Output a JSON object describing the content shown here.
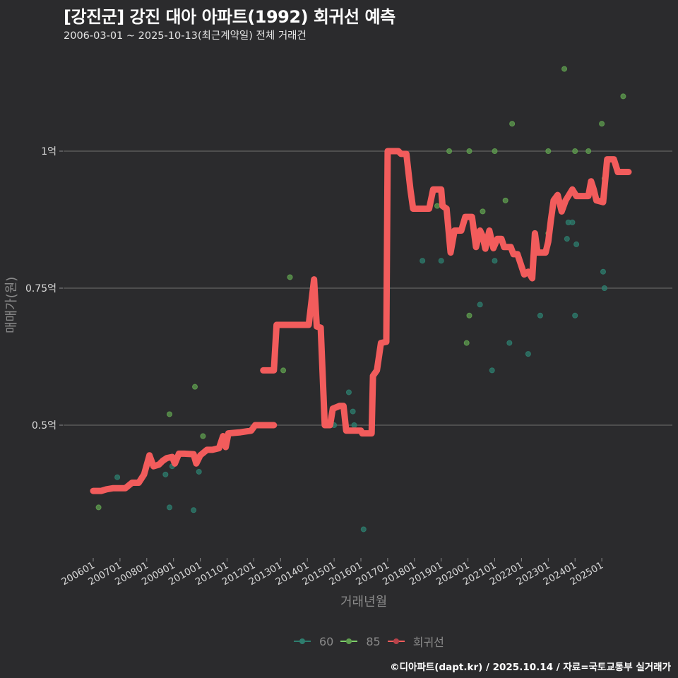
{
  "header": {
    "title": "[강진군] 강진 대아 아파트(1992) 회귀선 예측",
    "subtitle": "2006-03-01 ~ 2025-10-13(최근계약일) 전체 거래건"
  },
  "footer": {
    "credit": "©디아파트(dapt.kr) / 2025.10.14 / 자료=국토교통부 실거래가"
  },
  "colors": {
    "background": "#2b2b2d",
    "grid": "#707070",
    "series_60": "#2e7d6e",
    "series_85": "#5f9e4f",
    "regression": "#f25c5c"
  },
  "chart_data": {
    "type": "scatter",
    "title": "[강진군] 강진 대아 아파트(1992) 회귀선 예측",
    "subtitle": "2006-03-01 ~ 2025-10-13(최근계약일) 전체 거래건",
    "xlabel": "거래년월",
    "ylabel": "매매가(원)",
    "x_ticks": [
      "200601",
      "200701",
      "200801",
      "200901",
      "201001",
      "201101",
      "201201",
      "201301",
      "201401",
      "201501",
      "201601",
      "201701",
      "201801",
      "201901",
      "202001",
      "202101",
      "202201",
      "202301",
      "202401",
      "202501"
    ],
    "y_ticks": [
      {
        "value": 0.5,
        "label": "0.5억"
      },
      {
        "value": 0.75,
        "label": "0.75억"
      },
      {
        "value": 1.0,
        "label": "1억"
      }
    ],
    "ylim": [
      0.25,
      1.27
    ],
    "grid": true,
    "legend": {
      "position": "bottom",
      "entries": [
        {
          "label": "60",
          "color": "#2e7d6e"
        },
        {
          "label": "85",
          "color": "#5f9e4f"
        },
        {
          "label": "회귀선",
          "color": "#f25c5c"
        }
      ]
    },
    "series": [
      {
        "name": "60",
        "kind": "points",
        "points": [
          [
            2006.9,
            0.405
          ],
          [
            2008.7,
            0.41
          ],
          [
            2008.85,
            0.35
          ],
          [
            2008.95,
            0.425
          ],
          [
            2009.75,
            0.345
          ],
          [
            2009.95,
            0.415
          ],
          [
            2015.0,
            0.5
          ],
          [
            2015.55,
            0.56
          ],
          [
            2015.7,
            0.525
          ],
          [
            2015.75,
            0.5
          ],
          [
            2016.1,
            0.31
          ],
          [
            2018.3,
            0.8
          ],
          [
            2019.0,
            0.8
          ],
          [
            2020.45,
            0.72
          ],
          [
            2020.9,
            0.6
          ],
          [
            2021.0,
            0.8
          ],
          [
            2021.55,
            0.65
          ],
          [
            2022.25,
            0.63
          ],
          [
            2022.7,
            0.7
          ],
          [
            2023.7,
            0.84
          ],
          [
            2023.75,
            0.87
          ],
          [
            2023.9,
            0.87
          ],
          [
            2024.05,
            0.83
          ],
          [
            2024.0,
            0.7
          ],
          [
            2025.05,
            0.78
          ],
          [
            2025.1,
            0.75
          ]
        ]
      },
      {
        "name": "85",
        "kind": "points",
        "points": [
          [
            2006.2,
            0.35
          ],
          [
            2008.85,
            0.52
          ],
          [
            2009.8,
            0.57
          ],
          [
            2010.1,
            0.48
          ],
          [
            2013.1,
            0.6
          ],
          [
            2013.35,
            0.77
          ],
          [
            2018.85,
            0.9
          ],
          [
            2019.3,
            1.0
          ],
          [
            2019.95,
            0.65
          ],
          [
            2020.05,
            0.7
          ],
          [
            2020.05,
            1.0
          ],
          [
            2020.55,
            0.89
          ],
          [
            2021.0,
            1.0
          ],
          [
            2021.4,
            0.91
          ],
          [
            2021.65,
            1.05
          ],
          [
            2023.0,
            1.0
          ],
          [
            2023.0,
            0.85
          ],
          [
            2023.6,
            1.15
          ],
          [
            2024.0,
            1.0
          ],
          [
            2024.5,
            1.0
          ],
          [
            2025.0,
            1.05
          ],
          [
            2025.1,
            0.95
          ],
          [
            2025.8,
            1.1
          ]
        ]
      },
      {
        "name": "회귀선",
        "kind": "line",
        "points": [
          [
            2006.0,
            0.38
          ],
          [
            2006.3,
            0.38
          ],
          [
            2006.5,
            0.383
          ],
          [
            2006.75,
            0.385
          ],
          [
            2007.2,
            0.385
          ],
          [
            2007.45,
            0.395
          ],
          [
            2007.7,
            0.395
          ],
          [
            2007.9,
            0.41
          ],
          [
            2008.1,
            0.445
          ],
          [
            2008.25,
            0.425
          ],
          [
            2008.45,
            0.428
          ],
          [
            2008.6,
            0.435
          ],
          [
            2008.75,
            0.44
          ],
          [
            2008.95,
            0.442
          ],
          [
            2009.05,
            0.43
          ],
          [
            2009.2,
            0.448
          ],
          [
            2009.4,
            0.448
          ],
          [
            2009.75,
            0.447
          ],
          [
            2009.85,
            0.43
          ],
          [
            2010.0,
            0.445
          ],
          [
            2010.25,
            0.455
          ],
          [
            2010.45,
            0.455
          ],
          [
            2010.7,
            0.458
          ],
          [
            2010.85,
            0.48
          ],
          [
            2010.95,
            0.46
          ],
          [
            2011.05,
            0.485
          ],
          [
            2011.5,
            0.487
          ],
          [
            2011.9,
            0.49
          ],
          [
            2012.05,
            0.5
          ],
          [
            2012.4,
            0.5
          ],
          [
            2012.75,
            0.5
          ]
        ],
        "points_segment2": [
          [
            2012.35,
            0.6
          ],
          [
            2012.75,
            0.6
          ],
          [
            2012.85,
            0.683
          ],
          [
            2013.0,
            0.683
          ],
          [
            2014.05,
            0.683
          ],
          [
            2014.25,
            0.766
          ],
          [
            2014.35,
            0.68
          ],
          [
            2014.5,
            0.678
          ],
          [
            2014.65,
            0.5
          ],
          [
            2014.85,
            0.5
          ],
          [
            2014.95,
            0.53
          ],
          [
            2015.2,
            0.535
          ],
          [
            2015.35,
            0.535
          ],
          [
            2015.45,
            0.49
          ],
          [
            2016.0,
            0.49
          ],
          [
            2016.05,
            0.485
          ],
          [
            2016.4,
            0.485
          ],
          [
            2016.45,
            0.59
          ],
          [
            2016.6,
            0.6
          ],
          [
            2016.75,
            0.65
          ],
          [
            2016.95,
            0.652
          ],
          [
            2017.0,
            1.0
          ],
          [
            2017.4,
            1.0
          ],
          [
            2017.5,
            0.995
          ],
          [
            2017.7,
            0.995
          ],
          [
            2017.85,
            0.93
          ],
          [
            2017.95,
            0.895
          ],
          [
            2018.55,
            0.895
          ],
          [
            2018.7,
            0.93
          ],
          [
            2019.0,
            0.93
          ],
          [
            2019.05,
            0.9
          ],
          [
            2019.2,
            0.895
          ],
          [
            2019.35,
            0.815
          ],
          [
            2019.5,
            0.855
          ],
          [
            2019.75,
            0.855
          ],
          [
            2019.9,
            0.88
          ],
          [
            2020.15,
            0.88
          ],
          [
            2020.3,
            0.825
          ],
          [
            2020.45,
            0.855
          ],
          [
            2020.55,
            0.845
          ],
          [
            2020.65,
            0.822
          ],
          [
            2020.8,
            0.855
          ],
          [
            2020.95,
            0.823
          ],
          [
            2021.1,
            0.84
          ],
          [
            2021.25,
            0.84
          ],
          [
            2021.35,
            0.825
          ],
          [
            2021.6,
            0.825
          ],
          [
            2021.7,
            0.812
          ],
          [
            2021.85,
            0.812
          ],
          [
            2022.0,
            0.79
          ],
          [
            2022.1,
            0.775
          ],
          [
            2022.25,
            0.78
          ],
          [
            2022.4,
            0.768
          ],
          [
            2022.5,
            0.85
          ],
          [
            2022.6,
            0.815
          ],
          [
            2022.9,
            0.815
          ],
          [
            2023.0,
            0.835
          ],
          [
            2023.1,
            0.875
          ],
          [
            2023.2,
            0.91
          ],
          [
            2023.35,
            0.92
          ],
          [
            2023.5,
            0.89
          ],
          [
            2023.65,
            0.91
          ],
          [
            2023.9,
            0.93
          ],
          [
            2024.05,
            0.918
          ],
          [
            2024.5,
            0.918
          ],
          [
            2024.6,
            0.945
          ],
          [
            2024.7,
            0.93
          ],
          [
            2024.8,
            0.91
          ],
          [
            2025.05,
            0.907
          ],
          [
            2025.2,
            0.985
          ],
          [
            2025.45,
            0.985
          ],
          [
            2025.6,
            0.962
          ],
          [
            2026.0,
            0.962
          ]
        ]
      }
    ]
  }
}
